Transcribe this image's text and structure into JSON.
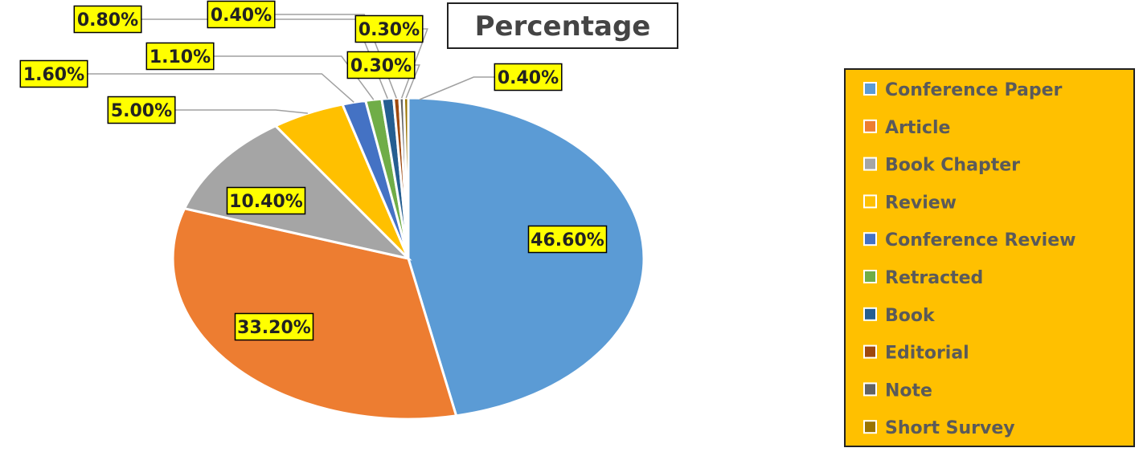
{
  "chart_data": {
    "type": "pie",
    "title": "Percentage",
    "categories": [
      "Conference Paper",
      "Article",
      "Book Chapter",
      "Review",
      "Conference Review",
      "Retracted",
      "Book",
      "Editorial",
      "Note",
      "Short Survey"
    ],
    "values": [
      46.6,
      33.2,
      10.4,
      5.0,
      1.6,
      1.1,
      0.8,
      0.4,
      0.3,
      0.3
    ],
    "data_labels": [
      "46.60%",
      "33.20%",
      "10.40%",
      "5.00%",
      "1.60%",
      "1.10%",
      "0.80%",
      "0.40%",
      "0.30%",
      "0.30%"
    ],
    "extra_labels": [
      "0.40%"
    ],
    "colors": [
      "#5b9bd5",
      "#ed7d31",
      "#a5a5a5",
      "#ffc000",
      "#4472c4",
      "#70ad47",
      "#255e91",
      "#9e480e",
      "#636363",
      "#997300"
    ],
    "legend_position": "right",
    "label_style": {
      "fill": "#ffff00",
      "border": "#000000"
    },
    "legend_background": "#ffc000"
  }
}
